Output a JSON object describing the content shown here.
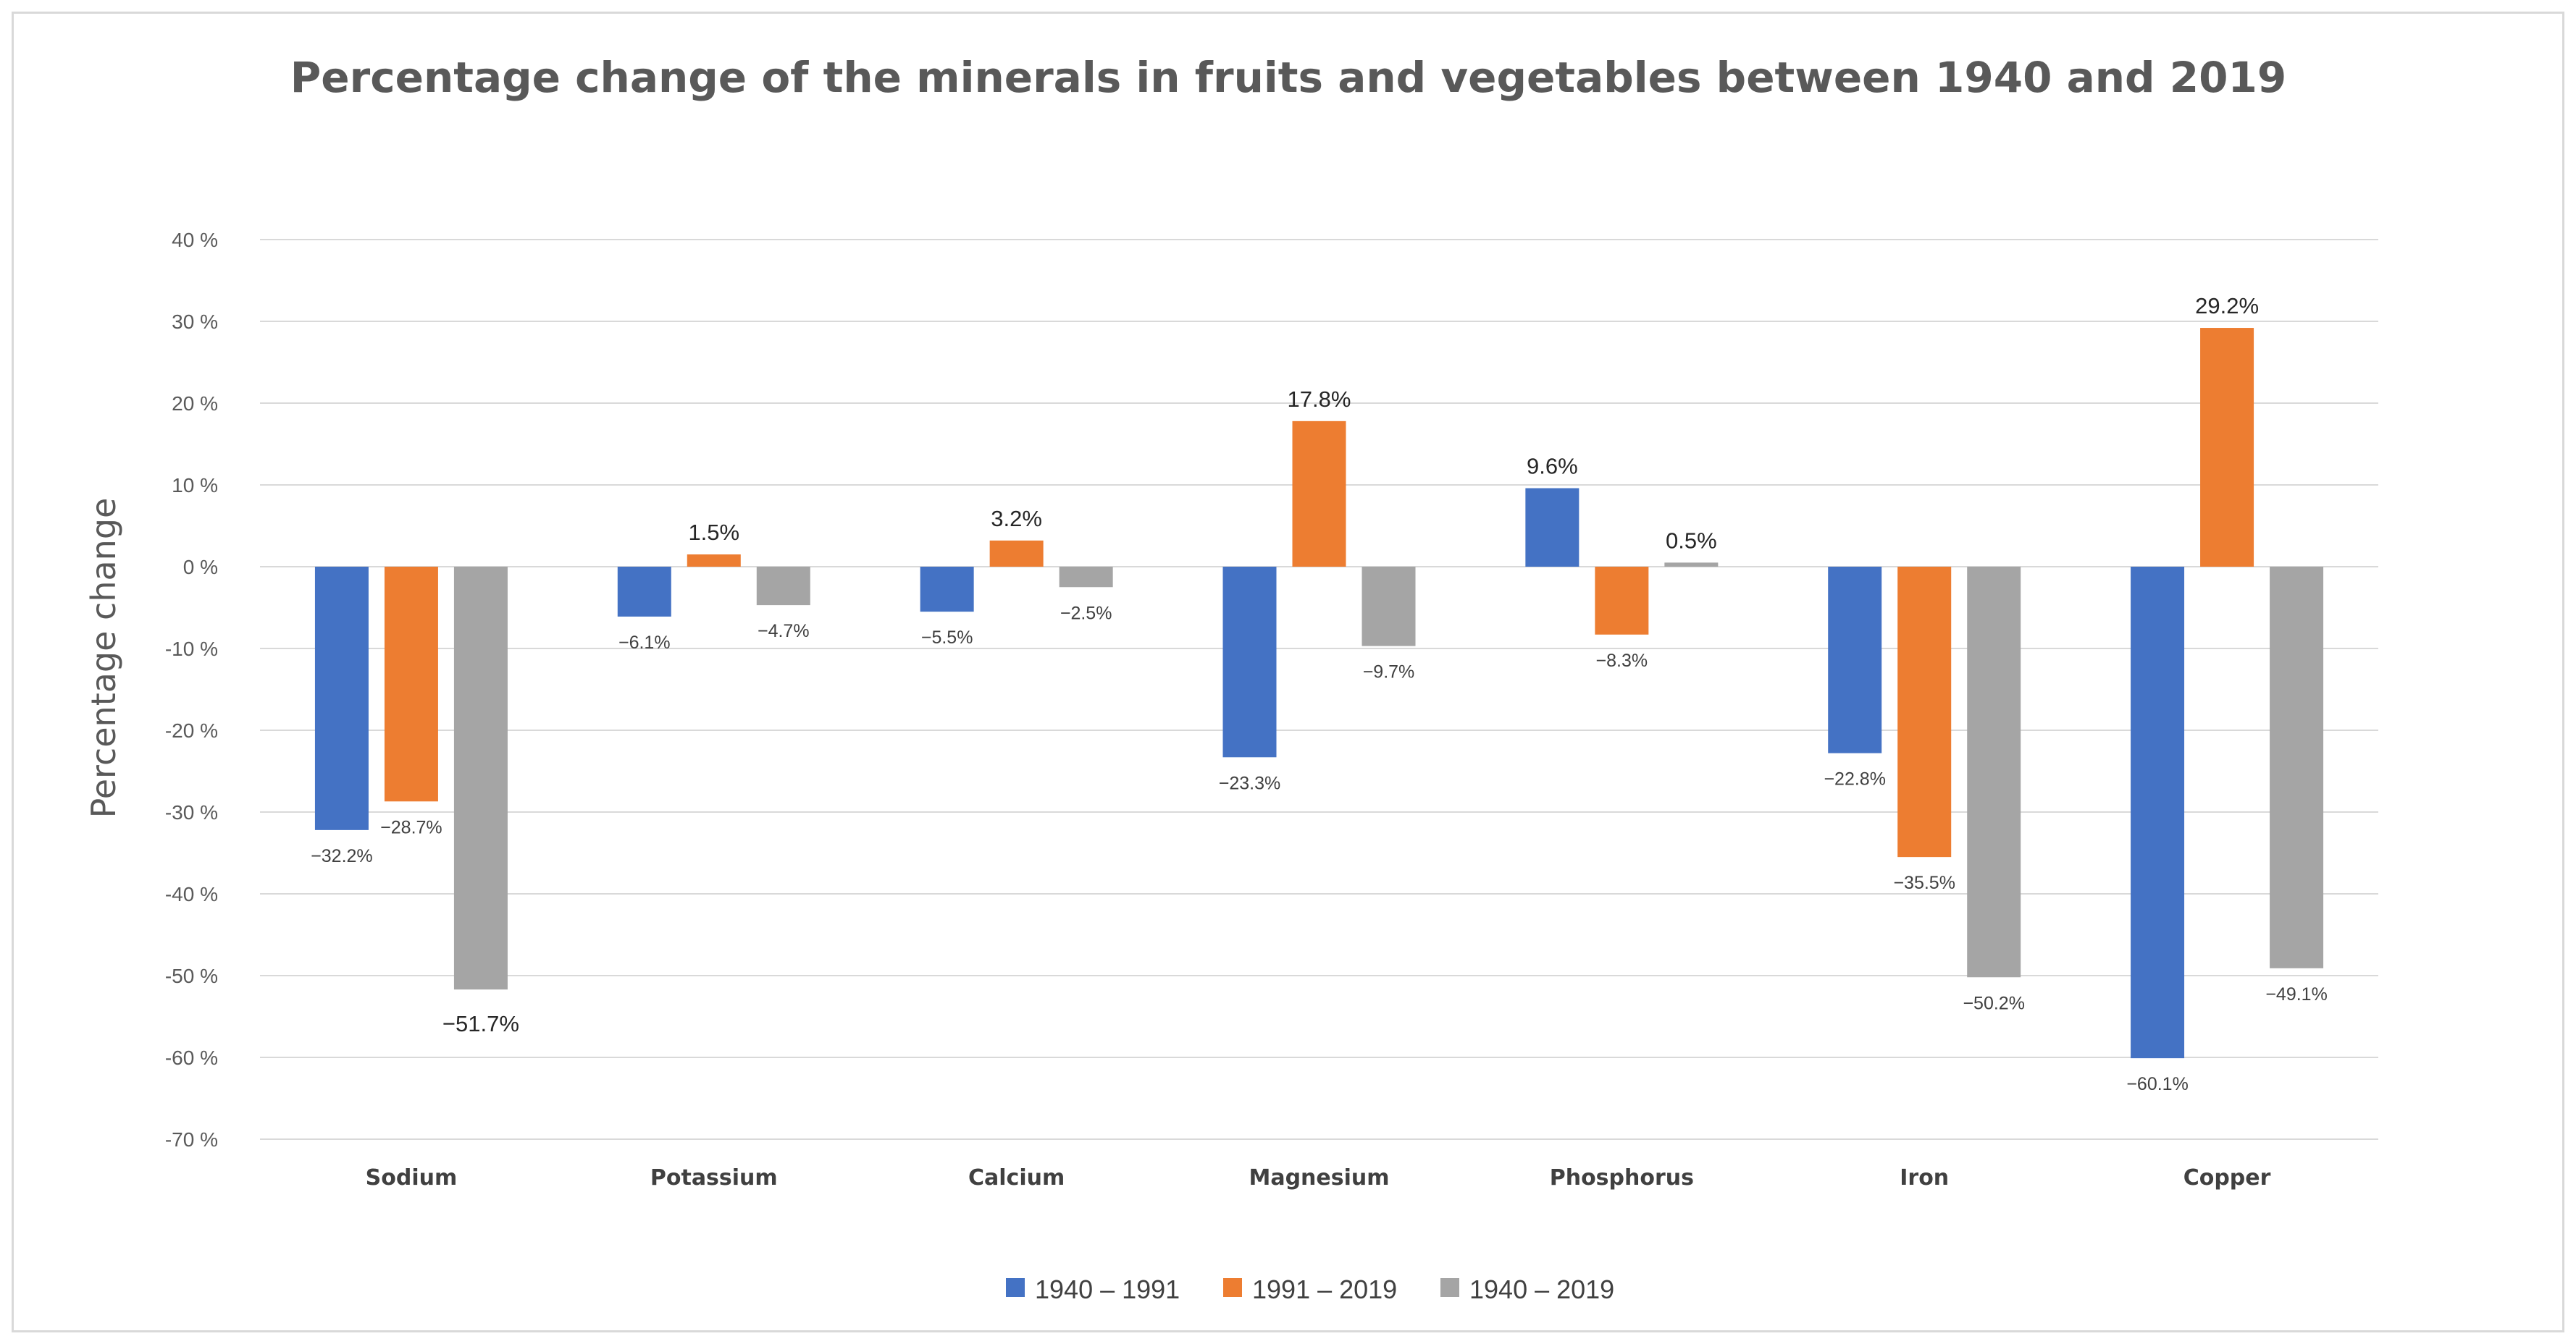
{
  "chart_data": {
    "type": "bar",
    "title": "Percentage change of the minerals in fruits and vegetables between 1940 and 2019",
    "xlabel": "",
    "ylabel": "Percentage change",
    "ylim": [
      -70,
      40
    ],
    "yticks": [
      40,
      30,
      20,
      10,
      0,
      -10,
      -20,
      -30,
      -40,
      -50,
      -60,
      -70
    ],
    "ytick_labels": [
      "40 %",
      "30 %",
      "20 %",
      "10 %",
      "0 %",
      "-10 %",
      "-20 %",
      "-30 %",
      "-40 %",
      "-50 %",
      "-60 %",
      "-70 %"
    ],
    "grid": true,
    "legend_position": "bottom",
    "categories": [
      "Sodium",
      "Potassium",
      "Calcium",
      "Magnesium",
      "Phosphorus",
      "Iron",
      "Copper"
    ],
    "series": [
      {
        "name": "1940 – 1991",
        "color": "#4472c4",
        "values": [
          -32.2,
          -6.1,
          -5.5,
          -23.3,
          9.6,
          -22.8,
          -60.1
        ],
        "labels": [
          "−32.2%",
          "−6.1%",
          "−5.5%",
          "−23.3%",
          "9.6%",
          "−22.8%",
          "−60.1%"
        ]
      },
      {
        "name": "1991 – 2019",
        "color": "#ed7d31",
        "values": [
          -28.7,
          1.5,
          3.2,
          17.8,
          -8.3,
          -35.5,
          29.2
        ],
        "labels": [
          "−28.7%",
          "1.5%",
          "3.2%",
          "17.8%",
          "−8.3%",
          "−35.5%",
          "29.2%"
        ]
      },
      {
        "name": "1940 – 2019",
        "color": "#a5a5a5",
        "values": [
          -51.7,
          -4.7,
          -2.5,
          -9.7,
          0.5,
          -50.2,
          -49.1
        ],
        "labels": [
          "−51.7%",
          "−4.7%",
          "−2.5%",
          "−9.7%",
          "0.5%",
          "−50.2%",
          "−49.1%"
        ]
      }
    ]
  }
}
